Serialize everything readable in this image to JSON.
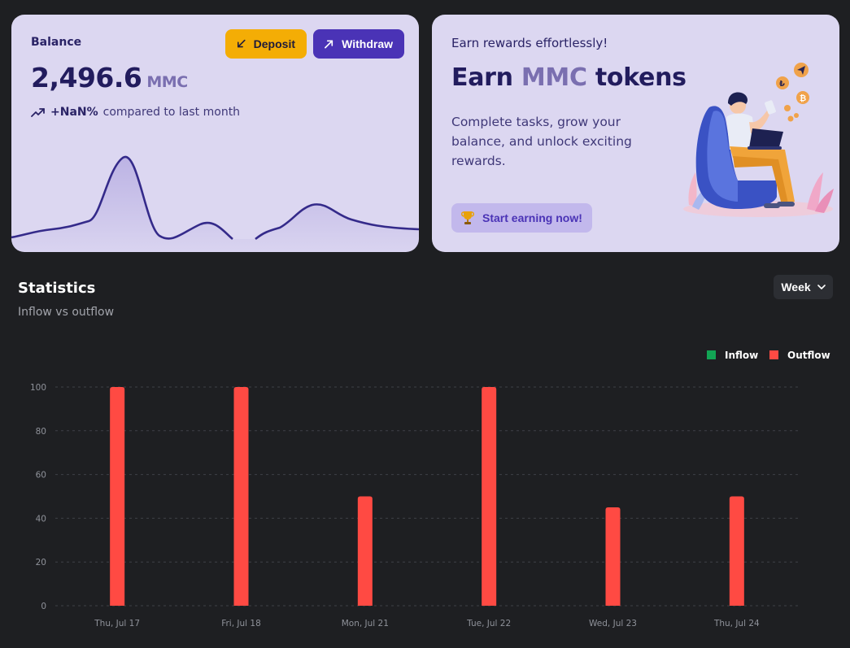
{
  "balance": {
    "label": "Balance",
    "amount": "2,496.6",
    "unit": "MMC",
    "change_value": "+NaN%",
    "change_text": "compared to last month",
    "deposit_label": "Deposit",
    "withdraw_label": "Withdraw"
  },
  "rewards": {
    "eyebrow": "Earn rewards effortlessly!",
    "title_prefix": "Earn",
    "title_accent": "MMC",
    "title_suffix": "tokens",
    "description": "Complete tasks, grow your balance, and unlock exciting rewards.",
    "cta_label": "Start earning now!"
  },
  "statistics": {
    "title": "Statistics",
    "subtitle": "Inflow vs outflow",
    "period": "Week"
  },
  "colors": {
    "inflow": "#12a454",
    "outflow": "#ff4a43",
    "deposit": "#f4ad05",
    "withdraw": "#4a33b6",
    "card": "#dcd7f1"
  },
  "chart_data": {
    "type": "bar",
    "categories": [
      "Thu, Jul 17",
      "Fri, Jul 18",
      "Mon, Jul 21",
      "Tue, Jul 22",
      "Wed, Jul 23",
      "Thu, Jul 24"
    ],
    "series": [
      {
        "name": "Inflow",
        "values": [
          0,
          0,
          0,
          0,
          0,
          0
        ]
      },
      {
        "name": "Outflow",
        "values": [
          100,
          100,
          50,
          100,
          45,
          50
        ]
      }
    ],
    "yticks": [
      0,
      20,
      40,
      60,
      80,
      100
    ],
    "ylim": [
      0,
      100
    ],
    "grid": true,
    "legend": "top-right"
  }
}
